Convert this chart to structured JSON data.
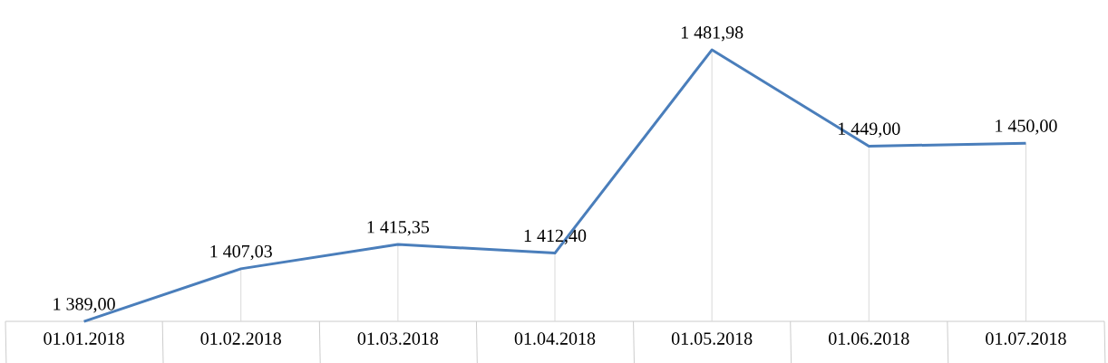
{
  "chart_data": {
    "type": "line",
    "categories": [
      "01.01.2018",
      "01.02.2018",
      "01.03.2018",
      "01.04.2018",
      "01.05.2018",
      "01.06.2018",
      "01.07.2018"
    ],
    "values": [
      1389.0,
      1407.03,
      1415.35,
      1412.4,
      1481.98,
      1449.0,
      1450.0
    ],
    "value_labels": [
      "1 389,00",
      "1 407,03",
      "1 415,35",
      "1 412,40",
      "1 481,98",
      "1 449,00",
      "1 450,00"
    ],
    "color": "#4a7ebb",
    "tick_labels": "x",
    "marker": "none",
    "line_style": "solid"
  }
}
